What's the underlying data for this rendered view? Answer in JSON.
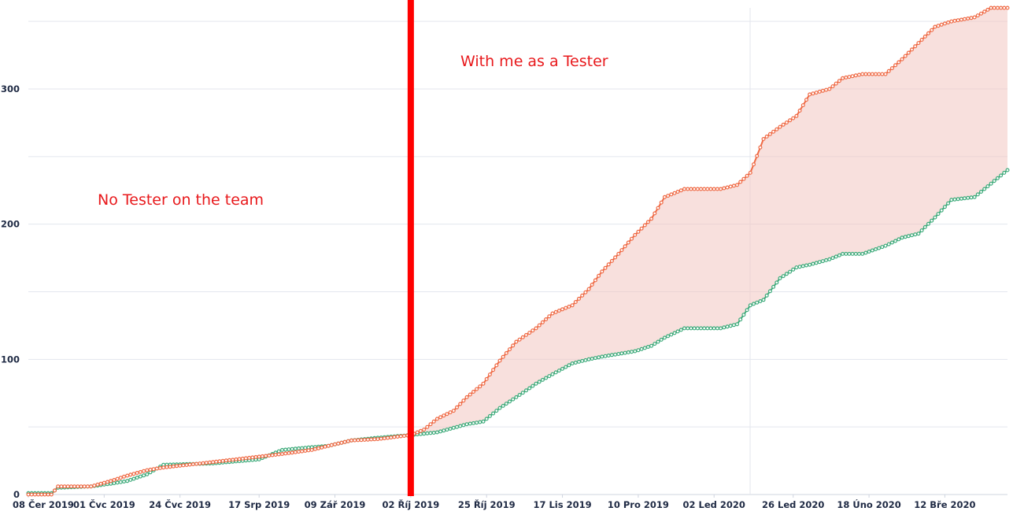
{
  "chart_data": {
    "type": "line",
    "title": "",
    "xlabel": "",
    "ylabel": "",
    "x_start": "2019-06-08",
    "x_end": "2020-03-31",
    "xlim": [
      "2019-06-08",
      "2020-03-31"
    ],
    "ylim": [
      0,
      360
    ],
    "y_ticks": [
      "0",
      "100",
      "200",
      "300"
    ],
    "y_tick_values": [
      0,
      100,
      200,
      300
    ],
    "x_tick_labels": [
      "08 Čer 2019",
      "01 Čvc 2019",
      "24 Čvc 2019",
      "17 Srp 2019",
      "09 Zář 2019",
      "02 Říj 2019",
      "25 Říj 2019",
      "17 Lis 2019",
      "10 Pro 2019",
      "02 Led 2020",
      "26 Led 2020",
      "18 Úno 2020",
      "12 Bře 2020"
    ],
    "x_tick_dates": [
      "2019-06-08",
      "2019-07-01",
      "2019-07-24",
      "2019-08-17",
      "2019-09-09",
      "2019-10-02",
      "2019-10-25",
      "2019-11-17",
      "2019-12-10",
      "2020-01-02",
      "2020-01-26",
      "2020-02-18",
      "2020-03-12"
    ],
    "grid": true,
    "legend": "none",
    "series": [
      {
        "color": "#ef6a45",
        "points": [
          [
            "2019-06-08",
            0
          ],
          [
            "2019-06-15",
            0
          ],
          [
            "2019-06-17",
            6
          ],
          [
            "2019-06-27",
            6
          ],
          [
            "2019-07-03",
            10
          ],
          [
            "2019-07-08",
            14
          ],
          [
            "2019-07-14",
            18
          ],
          [
            "2019-07-19",
            20
          ],
          [
            "2019-08-03",
            24
          ],
          [
            "2019-08-17",
            28
          ],
          [
            "2019-08-24",
            30
          ],
          [
            "2019-09-02",
            33
          ],
          [
            "2019-09-07",
            36
          ],
          [
            "2019-09-14",
            40
          ],
          [
            "2019-09-22",
            41
          ],
          [
            "2019-10-02",
            44
          ],
          [
            "2019-10-06",
            48
          ],
          [
            "2019-10-10",
            56
          ],
          [
            "2019-10-15",
            62
          ],
          [
            "2019-10-19",
            72
          ],
          [
            "2019-10-24",
            82
          ],
          [
            "2019-10-29",
            99
          ],
          [
            "2019-11-03",
            113
          ],
          [
            "2019-11-09",
            123
          ],
          [
            "2019-11-14",
            134
          ],
          [
            "2019-11-20",
            140
          ],
          [
            "2019-11-25",
            152
          ],
          [
            "2019-11-29",
            165
          ],
          [
            "2019-12-04",
            178
          ],
          [
            "2019-12-09",
            192
          ],
          [
            "2019-12-14",
            204
          ],
          [
            "2019-12-18",
            220
          ],
          [
            "2019-12-24",
            226
          ],
          [
            "2020-01-04",
            226
          ],
          [
            "2020-01-09",
            229
          ],
          [
            "2020-01-13",
            238
          ],
          [
            "2020-01-17",
            263
          ],
          [
            "2020-01-22",
            272
          ],
          [
            "2020-01-27",
            280
          ],
          [
            "2020-01-31",
            296
          ],
          [
            "2020-02-06",
            300
          ],
          [
            "2020-02-10",
            308
          ],
          [
            "2020-02-16",
            311
          ],
          [
            "2020-02-23",
            311
          ],
          [
            "2020-02-28",
            322
          ],
          [
            "2020-03-04",
            334
          ],
          [
            "2020-03-09",
            346
          ],
          [
            "2020-03-14",
            350
          ],
          [
            "2020-03-21",
            353
          ],
          [
            "2020-03-26",
            360
          ],
          [
            "2020-03-31",
            360
          ]
        ]
      },
      {
        "color": "#3daa7a",
        "points": [
          [
            "2019-06-08",
            1
          ],
          [
            "2019-06-15",
            1
          ],
          [
            "2019-06-17",
            5
          ],
          [
            "2019-06-27",
            6
          ],
          [
            "2019-07-03",
            8
          ],
          [
            "2019-07-08",
            10
          ],
          [
            "2019-07-14",
            15
          ],
          [
            "2019-07-19",
            22
          ],
          [
            "2019-08-03",
            23
          ],
          [
            "2019-08-17",
            26
          ],
          [
            "2019-08-24",
            33
          ],
          [
            "2019-09-02",
            35
          ],
          [
            "2019-09-07",
            36
          ],
          [
            "2019-09-14",
            40
          ],
          [
            "2019-09-22",
            42
          ],
          [
            "2019-10-02",
            44
          ],
          [
            "2019-10-10",
            46
          ],
          [
            "2019-10-19",
            52
          ],
          [
            "2019-10-24",
            54
          ],
          [
            "2019-10-29",
            64
          ],
          [
            "2019-11-03",
            72
          ],
          [
            "2019-11-09",
            82
          ],
          [
            "2019-11-14",
            89
          ],
          [
            "2019-11-20",
            97
          ],
          [
            "2019-11-25",
            100
          ],
          [
            "2019-11-29",
            102
          ],
          [
            "2019-12-04",
            104
          ],
          [
            "2019-12-09",
            106
          ],
          [
            "2019-12-14",
            110
          ],
          [
            "2019-12-18",
            116
          ],
          [
            "2019-12-24",
            123
          ],
          [
            "2020-01-04",
            123
          ],
          [
            "2020-01-09",
            126
          ],
          [
            "2020-01-13",
            140
          ],
          [
            "2020-01-17",
            144
          ],
          [
            "2020-01-22",
            160
          ],
          [
            "2020-01-27",
            168
          ],
          [
            "2020-01-31",
            170
          ],
          [
            "2020-02-06",
            174
          ],
          [
            "2020-02-10",
            178
          ],
          [
            "2020-02-16",
            178
          ],
          [
            "2020-02-23",
            184
          ],
          [
            "2020-02-28",
            190
          ],
          [
            "2020-03-04",
            193
          ],
          [
            "2020-03-09",
            205
          ],
          [
            "2020-03-14",
            218
          ],
          [
            "2020-03-21",
            220
          ],
          [
            "2020-03-26",
            230
          ],
          [
            "2020-03-31",
            240
          ]
        ]
      }
    ],
    "shaded_between_series": {
      "from": "2019-10-02",
      "to": "2020-03-31",
      "color": "#f3c7c1"
    },
    "marker": {
      "date": "2019-10-02",
      "color": "#ff0000"
    },
    "annotations": [
      {
        "text": "No Tester on the team",
        "date": "2019-06-29",
        "y": 217,
        "color": "#e8191c"
      },
      {
        "text": "With me as a Tester",
        "date": "2019-10-17",
        "y": 320,
        "color": "#e8191c"
      }
    ]
  }
}
